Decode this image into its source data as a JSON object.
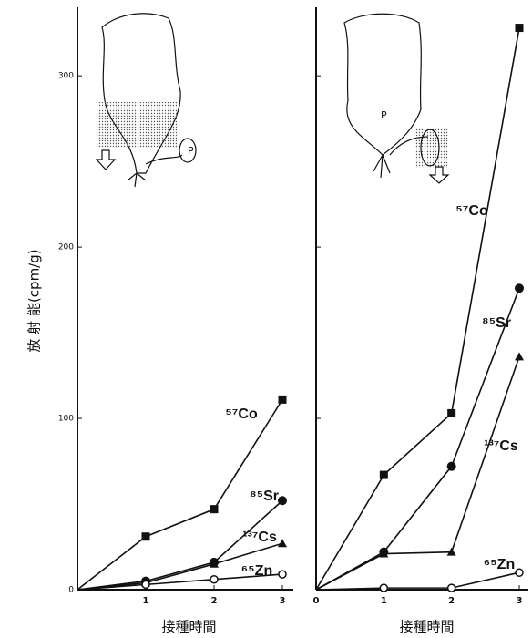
{
  "chart_data": [
    {
      "type": "line",
      "ylabel": "放 射 能(cpm/g)",
      "xlabel": "接種時間",
      "inset_label": "P",
      "x": [
        0,
        1,
        2,
        3
      ],
      "xlim": [
        0,
        3
      ],
      "xticks": [
        1,
        2,
        3
      ],
      "ylim": [
        0,
        340
      ],
      "yticks": [
        0,
        100,
        200,
        300
      ],
      "series": [
        {
          "name": "⁵⁷Co",
          "color": "#111111",
          "marker": "square",
          "values": [
            0,
            31,
            47,
            111
          ]
        },
        {
          "name": "⁸⁵Sr",
          "color": "#111111",
          "marker": "circle",
          "values": [
            0,
            5,
            16,
            52
          ]
        },
        {
          "name": "¹³⁷Cs",
          "color": "#111111",
          "marker": "triangle",
          "values": [
            0,
            4,
            15,
            27
          ]
        },
        {
          "name": "⁶⁵Zn",
          "color": "#111111",
          "marker": "open-circle",
          "values": [
            0,
            3,
            6,
            9
          ]
        }
      ]
    },
    {
      "type": "line",
      "xlabel": "接種時間",
      "inset_label": "P",
      "x": [
        0,
        1,
        2,
        3
      ],
      "xlim": [
        0,
        3
      ],
      "xticks": [
        0,
        1,
        2,
        3
      ],
      "ylim": [
        0,
        340
      ],
      "yticks": [
        100,
        200,
        300
      ],
      "series": [
        {
          "name": "⁵⁷Co",
          "color": "#111111",
          "marker": "square",
          "values": [
            0,
            67,
            103,
            328
          ]
        },
        {
          "name": "⁸⁵Sr",
          "color": "#111111",
          "marker": "circle",
          "values": [
            0,
            22,
            72,
            176
          ]
        },
        {
          "name": "¹³⁷Cs",
          "color": "#111111",
          "marker": "triangle",
          "values": [
            0,
            21,
            22,
            136
          ]
        },
        {
          "name": "⁶⁵Zn",
          "color": "#111111",
          "marker": "open-circle",
          "values": [
            0,
            1,
            1,
            10
          ]
        }
      ]
    }
  ]
}
